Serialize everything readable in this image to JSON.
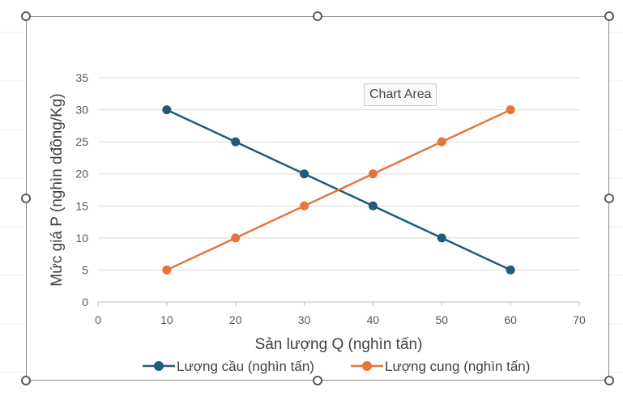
{
  "tooltip": {
    "text": "Chart Area"
  },
  "chart_data": {
    "type": "line",
    "title": "",
    "xlabel": "Sản lượng Q (nghìn tấn)",
    "ylabel": "Mức giá P (nghìn dđồng/Kg)",
    "xlim": [
      0,
      70
    ],
    "ylim": [
      0,
      35
    ],
    "x_ticks": [
      0,
      10,
      20,
      30,
      40,
      50,
      60,
      70
    ],
    "y_ticks": [
      0,
      5,
      10,
      15,
      20,
      25,
      30,
      35
    ],
    "grid": true,
    "legend_position": "bottom",
    "series": [
      {
        "name": "Lượng cầu (nghìn tấn)",
        "color": "#1f5c7a",
        "x": [
          10,
          20,
          30,
          40,
          50,
          60
        ],
        "y": [
          30,
          25,
          20,
          15,
          10,
          5
        ]
      },
      {
        "name": "Lượng cung (nghìn tấn)",
        "color": "#e8743b",
        "x": [
          10,
          20,
          30,
          40,
          50,
          60
        ],
        "y": [
          5,
          10,
          15,
          20,
          25,
          30
        ]
      }
    ]
  }
}
